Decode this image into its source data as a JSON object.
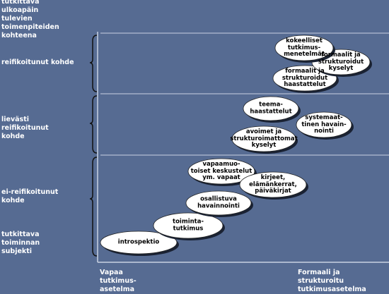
{
  "colors": {
    "background": "#566b92",
    "line": "#c9d2e2",
    "oval_fill": "#ffffff",
    "text": "#ffffff",
    "oval_text": "#000000"
  },
  "y_axis": {
    "top": "tutkittava\nulkoapäin\ntulevien\ntoimenpiteiden\nkohteena",
    "band_high": "reifikoitunut kohde",
    "band_mid": "lievästi\nreifikoitunut\nkohde",
    "band_low": "ei-reifikoitunut\nkohde",
    "bottom": "tutkittava\ntoiminnan\nsubjekti"
  },
  "x_axis": {
    "left": "Vapaa\ntutkimus-\nasetelma",
    "right": "Formaali ja\nstrukturoitu\ntutkimusasetelma"
  },
  "ovals": [
    {
      "id": "introspektio",
      "text": "introspektio"
    },
    {
      "id": "toimintatutkimus",
      "text": "toiminta-\ntutkimus"
    },
    {
      "id": "osallistuva",
      "text": "osallistuva\nhavainnointi"
    },
    {
      "id": "vapaamuotoiset",
      "text": "vapaamuo-\ntoiset keskustelut\nym. vapaat"
    },
    {
      "id": "kirjeet",
      "text": "kirjeet,\nelämänkerrat,\npäiväkirjat"
    },
    {
      "id": "avoimet",
      "text": "avoimet ja\nstrukturoimattomat\nkyselyt"
    },
    {
      "id": "systemaattinen",
      "text": "systemaat-\ntinen havain-\nnointi"
    },
    {
      "id": "teemahaastattelut",
      "text": "teema-\nhaastattelut"
    },
    {
      "id": "formaalit-haastattelut",
      "text": "formaalit ja\nstrukturoidut\nhaastattelut"
    },
    {
      "id": "formaalit-kyselyt",
      "text": "formaalit ja\nstrukturoidut\nkyselyt"
    },
    {
      "id": "kokeelliset",
      "text": "kokeelliset\ntutkimus-\nmenetelmät"
    }
  ]
}
